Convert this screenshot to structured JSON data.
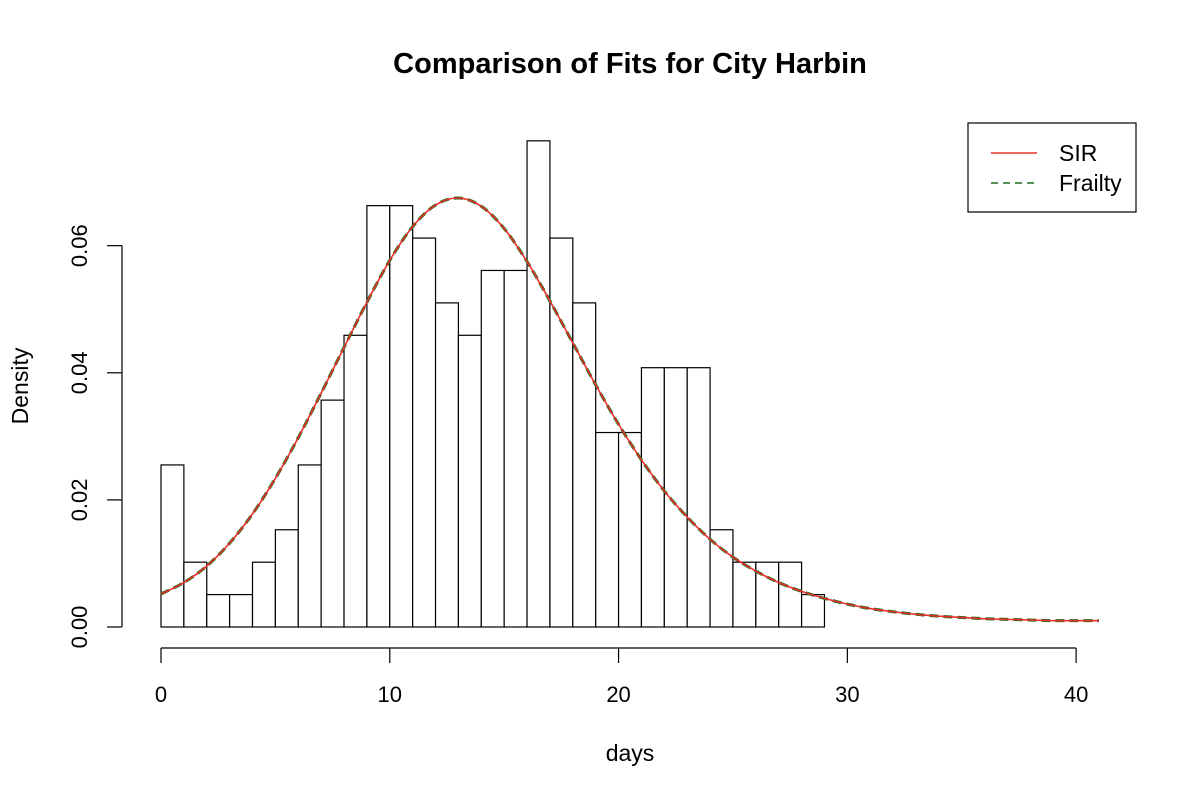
{
  "chart_data": {
    "type": "histogram",
    "title": "Comparison of Fits for City Harbin",
    "xlabel": "days",
    "ylabel": "Density",
    "xlim": [
      0,
      41
    ],
    "ylim": [
      0,
      0.076
    ],
    "x_ticks": [
      0,
      10,
      20,
      30,
      40
    ],
    "x_tick_labels": [
      "0",
      "10",
      "20",
      "30",
      "40"
    ],
    "y_ticks": [
      0,
      0.02,
      0.04,
      0.06
    ],
    "y_tick_labels": [
      "0.00",
      "0.02",
      "0.04",
      "0.06"
    ],
    "grid": false,
    "bins": {
      "breaks": [
        0,
        1,
        2,
        3,
        4,
        5,
        6,
        7,
        8,
        9,
        10,
        11,
        12,
        13,
        14,
        15,
        16,
        17,
        18,
        19,
        20,
        21,
        22,
        23,
        24,
        25,
        26,
        27,
        28,
        29
      ],
      "density": [
        0.0255,
        0.0102,
        0.0051,
        0.0051,
        0.0102,
        0.0153,
        0.0255,
        0.0357,
        0.0459,
        0.0663,
        0.0663,
        0.0612,
        0.051,
        0.0459,
        0.0561,
        0.0561,
        0.0765,
        0.0612,
        0.051,
        0.0306,
        0.0306,
        0.0408,
        0.0408,
        0.0408,
        0.0153,
        0.0102,
        0.0102,
        0.0102,
        0.0051
      ]
    },
    "series": [
      {
        "name": "SIR",
        "line_style": "solid",
        "color": "#e8302a",
        "x": [
          0,
          1,
          2,
          3,
          4,
          5,
          6,
          7,
          8,
          9,
          10,
          11,
          12,
          13,
          14,
          15,
          16,
          17,
          18,
          19,
          20,
          21,
          22,
          23,
          24,
          25,
          26,
          27,
          28,
          29,
          30,
          31,
          32,
          33,
          34,
          35,
          36,
          37,
          38,
          39,
          40,
          41
        ],
        "y": [
          0.0052,
          0.007,
          0.0096,
          0.0132,
          0.0178,
          0.0234,
          0.0298,
          0.0368,
          0.044,
          0.0511,
          0.0577,
          0.063,
          0.0664,
          0.0675,
          0.0662,
          0.0627,
          0.0575,
          0.0513,
          0.0447,
          0.0381,
          0.0319,
          0.0263,
          0.0214,
          0.0173,
          0.0138,
          0.011,
          0.0088,
          0.007,
          0.0056,
          0.0045,
          0.0036,
          0.0029,
          0.0024,
          0.002,
          0.0017,
          0.0015,
          0.0013,
          0.0012,
          0.0011,
          0.001,
          0.001,
          0.001
        ]
      },
      {
        "name": "Frailty",
        "line_style": "dashed",
        "color": "#1e6b1e",
        "x": [
          0,
          1,
          2,
          3,
          4,
          5,
          6,
          7,
          8,
          9,
          10,
          11,
          12,
          13,
          14,
          15,
          16,
          17,
          18,
          19,
          20,
          21,
          22,
          23,
          24,
          25,
          26,
          27,
          28,
          29,
          30,
          31,
          32,
          33,
          34,
          35,
          36,
          37,
          38,
          39,
          40,
          41
        ],
        "y": [
          0.0052,
          0.007,
          0.0096,
          0.0132,
          0.0178,
          0.0234,
          0.0298,
          0.0368,
          0.044,
          0.0511,
          0.0577,
          0.063,
          0.0664,
          0.0675,
          0.0662,
          0.0627,
          0.0575,
          0.0513,
          0.0447,
          0.0381,
          0.0319,
          0.0263,
          0.0214,
          0.0173,
          0.0138,
          0.011,
          0.0088,
          0.007,
          0.0056,
          0.0045,
          0.0036,
          0.0029,
          0.0024,
          0.002,
          0.0017,
          0.0015,
          0.0013,
          0.0012,
          0.0011,
          0.001,
          0.001,
          0.001
        ]
      }
    ],
    "legend": {
      "position": "top-right",
      "entries": [
        "SIR",
        "Frailty"
      ]
    }
  }
}
